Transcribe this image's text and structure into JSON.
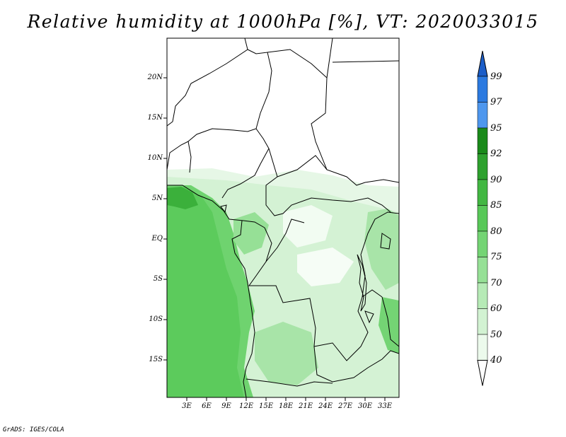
{
  "title": "Relative humidity at 1000hPa [%], VT: 2020033015",
  "credit": "GrADS: IGES/COLA",
  "lat_labels": [
    "20N",
    "15N",
    "10N",
    "5N",
    "EQ",
    "5S",
    "10S",
    "15S"
  ],
  "lon_labels": [
    "3E",
    "6E",
    "9E",
    "12E",
    "15E",
    "18E",
    "21E",
    "24E",
    "27E",
    "30E",
    "33E"
  ],
  "colorbar": {
    "levels": [
      "99",
      "97",
      "95",
      "92",
      "90",
      "85",
      "80",
      "75",
      "70",
      "60",
      "50",
      "40"
    ],
    "colors": [
      "#1c5ec8",
      "#2c7ae0",
      "#4e97ee",
      "#1a8a1a",
      "#2ea12e",
      "#42b742",
      "#58c858",
      "#74d474",
      "#96e096",
      "#b6eab6",
      "#d2f2d2",
      "#ecfaec"
    ]
  }
}
